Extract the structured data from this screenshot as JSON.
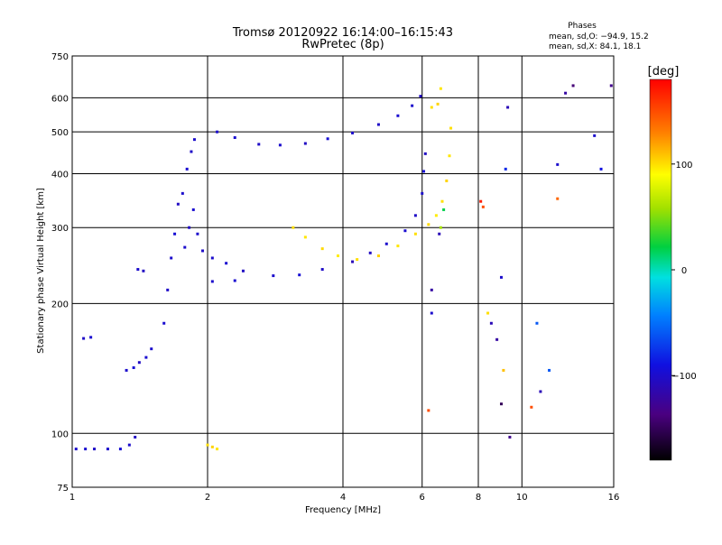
{
  "header": {
    "title": "Tromsø 20120922 16:14:00–16:15:43",
    "subtitle": "RwPretec (8p)"
  },
  "stats": {
    "label": "Phases",
    "line_o": "mean, sd,O: −94.9, 15.2",
    "line_x": "mean, sd,X:  84.1, 18.1"
  },
  "colorbar": {
    "unit": "[deg]",
    "ticks": [
      "100",
      "0",
      "−100"
    ],
    "tick_values": [
      100,
      0,
      -100
    ],
    "range": [
      -180,
      180
    ]
  },
  "chart_data": {
    "type": "scatter",
    "xlabel": "Frequency [MHz]",
    "ylabel": "Stationary phase Virtual Height [km]",
    "x_scale": "log",
    "y_scale": "log",
    "xlim": [
      1,
      16
    ],
    "ylim": [
      75,
      750
    ],
    "grid": true,
    "x_ticks": [
      {
        "value": 1,
        "label": "1"
      },
      {
        "value": 2,
        "label": "2"
      },
      {
        "value": 4,
        "label": "4"
      },
      {
        "value": 6,
        "label": "6"
      },
      {
        "value": 8,
        "label": "8"
      },
      {
        "value": 10,
        "label": "10"
      },
      {
        "value": 16,
        "label": "16"
      }
    ],
    "y_ticks": [
      {
        "value": 75,
        "label": "75"
      },
      {
        "value": 100,
        "label": "100"
      },
      {
        "value": 200,
        "label": "200"
      },
      {
        "value": 300,
        "label": "300"
      },
      {
        "value": 400,
        "label": "400"
      },
      {
        "value": 500,
        "label": "500"
      },
      {
        "value": 600,
        "label": "600"
      },
      {
        "value": 750,
        "label": "750"
      }
    ],
    "series": [
      {
        "points": [
          [
            1.02,
            92,
            -100
          ],
          [
            1.07,
            92,
            -98
          ],
          [
            1.12,
            92,
            -102
          ],
          [
            1.2,
            92,
            -100
          ],
          [
            1.28,
            92,
            -96
          ],
          [
            1.34,
            94,
            -100
          ],
          [
            1.38,
            98,
            -104
          ],
          [
            1.06,
            166,
            -102
          ],
          [
            1.1,
            167,
            -98
          ],
          [
            1.32,
            140,
            -100
          ],
          [
            1.37,
            142,
            -96
          ],
          [
            1.41,
            146,
            -104
          ],
          [
            1.46,
            150,
            -98
          ],
          [
            1.5,
            157,
            -100
          ],
          [
            1.4,
            240,
            -100
          ],
          [
            1.44,
            238,
            -104
          ],
          [
            1.6,
            180,
            -98
          ],
          [
            1.63,
            215,
            -102
          ],
          [
            1.66,
            255,
            -100
          ],
          [
            1.69,
            290,
            -96
          ],
          [
            1.72,
            340,
            -104
          ],
          [
            1.76,
            360,
            -100
          ],
          [
            1.8,
            410,
            -98
          ],
          [
            1.84,
            450,
            -102
          ],
          [
            1.87,
            480,
            -100
          ],
          [
            1.78,
            270,
            -100
          ],
          [
            1.82,
            300,
            -104
          ],
          [
            1.86,
            330,
            -98
          ],
          [
            1.9,
            290,
            -100
          ],
          [
            1.95,
            265,
            -102
          ],
          [
            2.05,
            255,
            -100
          ],
          [
            2.2,
            248,
            -98
          ],
          [
            2.4,
            238,
            -104
          ],
          [
            2.8,
            232,
            -100
          ],
          [
            3.2,
            233,
            -96
          ],
          [
            3.6,
            240,
            -102
          ],
          [
            4.2,
            250,
            -110
          ],
          [
            4.6,
            262,
            -104
          ],
          [
            5.0,
            275,
            -100
          ],
          [
            5.5,
            295,
            -98
          ],
          [
            5.8,
            320,
            -102
          ],
          [
            6.0,
            360,
            -100
          ],
          [
            6.05,
            405,
            -96
          ],
          [
            6.1,
            445,
            -104
          ],
          [
            2.1,
            500,
            -100
          ],
          [
            2.3,
            485,
            -98
          ],
          [
            2.6,
            468,
            -102
          ],
          [
            2.9,
            466,
            -100
          ],
          [
            3.3,
            470,
            -104
          ],
          [
            3.7,
            482,
            -96
          ],
          [
            4.2,
            497,
            -100
          ],
          [
            4.8,
            520,
            -102
          ],
          [
            5.3,
            545,
            -98
          ],
          [
            5.7,
            575,
            -100
          ],
          [
            5.95,
            605,
            -104
          ],
          [
            2.05,
            225,
            -100
          ],
          [
            2.3,
            226,
            -98
          ],
          [
            3.1,
            300,
            100
          ],
          [
            3.3,
            285,
            98
          ],
          [
            3.6,
            268,
            102
          ],
          [
            3.9,
            258,
            96
          ],
          [
            4.3,
            253,
            100
          ],
          [
            4.8,
            258,
            104
          ],
          [
            5.3,
            272,
            98
          ],
          [
            5.8,
            290,
            100
          ],
          [
            6.2,
            305,
            102
          ],
          [
            6.45,
            320,
            96
          ],
          [
            6.65,
            345,
            100
          ],
          [
            6.8,
            385,
            104
          ],
          [
            6.9,
            440,
            98
          ],
          [
            6.95,
            510,
            100
          ],
          [
            6.3,
            570,
            100
          ],
          [
            6.5,
            580,
            104
          ],
          [
            6.6,
            630,
            98
          ],
          [
            2.0,
            94,
            100
          ],
          [
            2.05,
            93,
            104
          ],
          [
            2.1,
            92,
            98
          ],
          [
            6.6,
            300,
            60
          ],
          [
            6.7,
            330,
            20
          ],
          [
            6.55,
            290,
            -110
          ],
          [
            8.4,
            190,
            100
          ],
          [
            8.55,
            180,
            -110
          ],
          [
            8.8,
            165,
            -120
          ],
          [
            9.1,
            140,
            110
          ],
          [
            9.2,
            410,
            -80
          ],
          [
            9.3,
            570,
            -110
          ],
          [
            9.0,
            230,
            -100
          ],
          [
            9.4,
            98,
            -130
          ],
          [
            9.0,
            117,
            -150
          ],
          [
            10.5,
            115,
            150
          ],
          [
            10.8,
            180,
            -60
          ],
          [
            11.0,
            125,
            -110
          ],
          [
            11.5,
            140,
            -60
          ],
          [
            12.0,
            350,
            140
          ],
          [
            12.0,
            420,
            -100
          ],
          [
            12.5,
            615,
            -120
          ],
          [
            13.0,
            640,
            -140
          ],
          [
            14.5,
            490,
            -100
          ],
          [
            15.0,
            410,
            -90
          ],
          [
            15.8,
            640,
            -130
          ],
          [
            6.3,
            190,
            -100
          ],
          [
            6.3,
            215,
            -120
          ],
          [
            6.2,
            113,
            150
          ],
          [
            8.2,
            335,
            150
          ],
          [
            8.1,
            345,
            170
          ]
        ]
      }
    ]
  }
}
